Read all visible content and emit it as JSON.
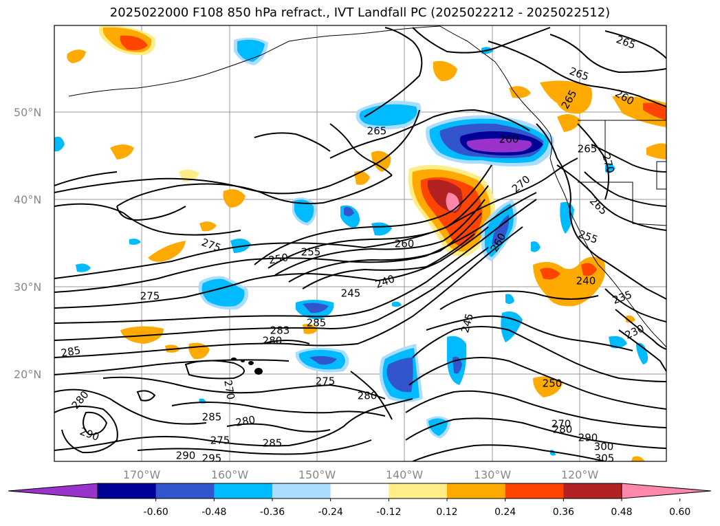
{
  "title": "2025022000 F108 850 hPa refract., IVT Landfall PC (2025022212 - 2025022512)",
  "lat_ticks": [
    "50°N",
    "40°N",
    "30°N",
    "20°N"
  ],
  "lon_ticks": [
    "170°W",
    "160°W",
    "150°W",
    "140°W",
    "130°W",
    "120°W"
  ],
  "colorbar": {
    "labels": [
      "-0.60",
      "-0.48",
      "-0.36",
      "-0.24",
      "-0.12",
      "0.12",
      "0.24",
      "0.36",
      "0.48",
      "0.60"
    ],
    "colors": [
      "#9933cc",
      "#000099",
      "#3355cc",
      "#00bbff",
      "#aaddff",
      "#ffffff",
      "#ffee88",
      "#ffaa00",
      "#ff4400",
      "#b22222",
      "#ff88aa"
    ]
  },
  "contour_labels": [
    {
      "text": "265"
    },
    {
      "text": "265"
    },
    {
      "text": "260"
    },
    {
      "text": "265"
    },
    {
      "text": "265"
    },
    {
      "text": "260"
    },
    {
      "text": "265"
    },
    {
      "text": "270"
    },
    {
      "text": "270"
    },
    {
      "text": "265"
    },
    {
      "text": "255"
    },
    {
      "text": "260"
    },
    {
      "text": "260"
    },
    {
      "text": "275"
    },
    {
      "text": "255"
    },
    {
      "text": "250"
    },
    {
      "text": "240"
    },
    {
      "text": "245"
    },
    {
      "text": "275"
    },
    {
      "text": "240"
    },
    {
      "text": "235"
    },
    {
      "text": "285"
    },
    {
      "text": "283"
    },
    {
      "text": "280"
    },
    {
      "text": "285"
    },
    {
      "text": "245"
    },
    {
      "text": "230"
    },
    {
      "text": "270"
    },
    {
      "text": "275"
    },
    {
      "text": "280"
    },
    {
      "text": "250"
    },
    {
      "text": "280"
    },
    {
      "text": "285"
    },
    {
      "text": "280"
    },
    {
      "text": "270"
    },
    {
      "text": "280"
    },
    {
      "text": "290"
    },
    {
      "text": "275"
    },
    {
      "text": "285"
    },
    {
      "text": "290"
    },
    {
      "text": "295"
    },
    {
      "text": "290"
    },
    {
      "text": "300"
    },
    {
      "text": "305"
    }
  ]
}
